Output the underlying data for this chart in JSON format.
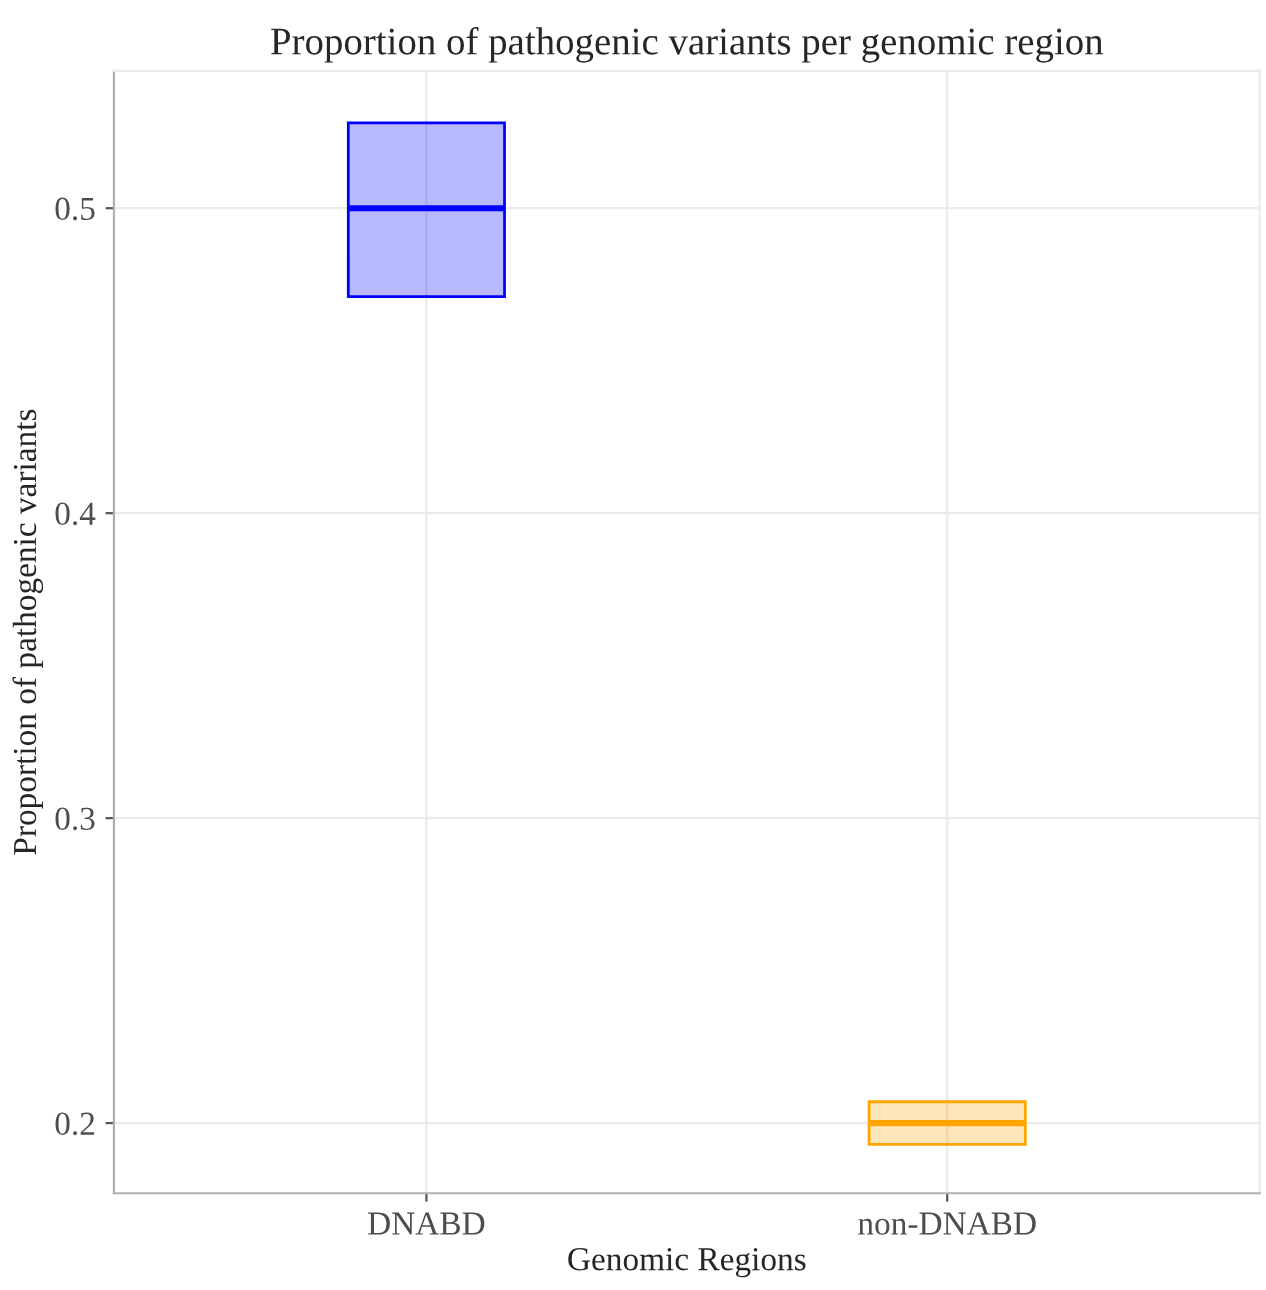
{
  "chart_data": {
    "type": "box",
    "title": "Proportion of pathogenic variants per genomic region",
    "xlabel": "Genomic Regions",
    "ylabel": "Proportion of pathogenic variants",
    "categories": [
      "DNABD",
      "non-DNABD"
    ],
    "boxes": [
      {
        "low": 0.471,
        "q1": 0.471,
        "median": 0.5,
        "q3": 0.528,
        "high": 0.528
      },
      {
        "low": 0.193,
        "q1": 0.193,
        "median": 0.2,
        "q3": 0.207,
        "high": 0.207
      }
    ],
    "colors": [
      "#0000ff",
      "#ffa500"
    ],
    "ylim": [
      0.177,
      0.545
    ],
    "yticks": [
      0.2,
      0.3,
      0.4,
      0.5
    ],
    "grid": true
  }
}
